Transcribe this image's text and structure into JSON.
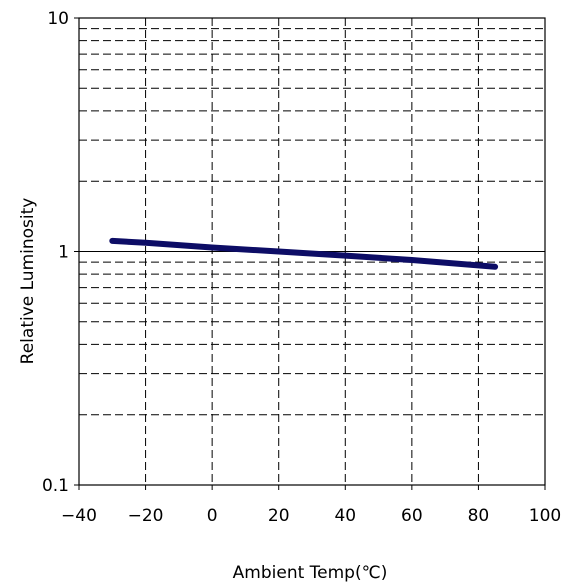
{
  "chart_data": {
    "type": "line",
    "title": "",
    "xlabel": "Ambient Temp(℃)",
    "ylabel": "Relative Luminosity",
    "x_scale": "linear",
    "y_scale": "log",
    "xlim": [
      -40,
      100
    ],
    "ylim": [
      0.1,
      10
    ],
    "x_ticks": [
      -40,
      -20,
      0,
      20,
      40,
      60,
      80,
      100
    ],
    "x_tick_labels": [
      "−40",
      "−20",
      "0",
      "20",
      "40",
      "60",
      "80",
      "100"
    ],
    "y_ticks": [
      0.1,
      1,
      10
    ],
    "y_tick_labels": [
      "0.1",
      "1",
      "10"
    ],
    "grid": true,
    "series": [
      {
        "color": "#0d0d66",
        "x": [
          -30,
          -20,
          0,
          20,
          40,
          60,
          85
        ],
        "y": [
          1.11,
          1.09,
          1.04,
          1.0,
          0.96,
          0.92,
          0.86
        ]
      }
    ]
  }
}
